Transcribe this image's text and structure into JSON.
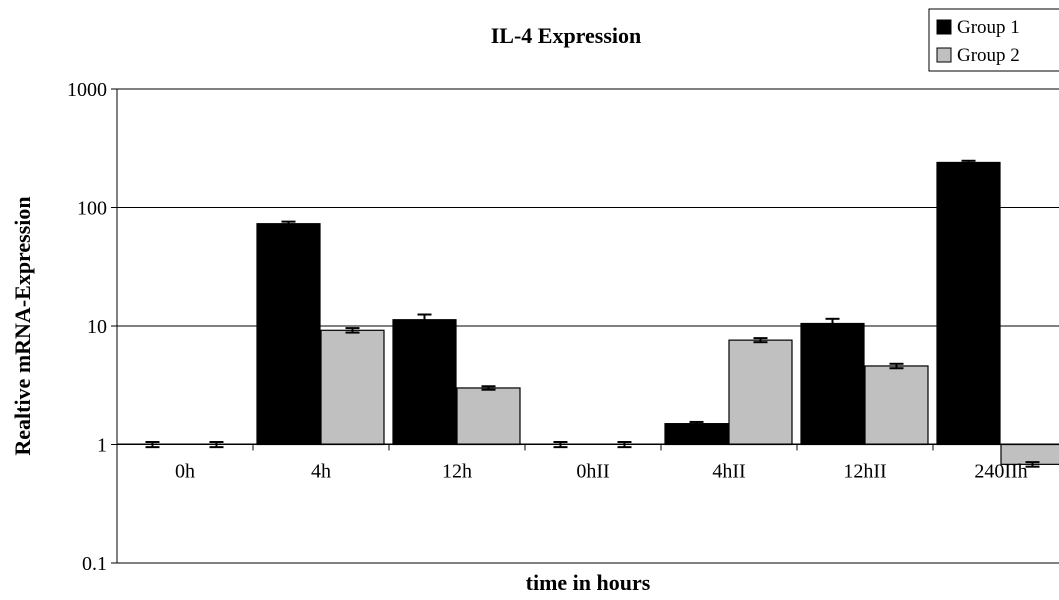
{
  "chart_data": {
    "type": "bar",
    "title": "IL-4 Expression",
    "xlabel": "time in hours",
    "ylabel": "Realtive mRNA-Expression",
    "yscale": "log",
    "ylim": [
      0.1,
      1000
    ],
    "yticks": [
      "0.1",
      "1",
      "10",
      "100",
      "1000"
    ],
    "grid": true,
    "legend_position": "top-right",
    "categories": [
      "0h",
      "4h",
      "12h",
      "0hII",
      "4hII",
      "12hII",
      "240IIh"
    ],
    "series": [
      {
        "name": "Group 1",
        "color": "#000000",
        "values": [
          1,
          73,
          11.3,
          1,
          1.5,
          10.5,
          240
        ],
        "errors": [
          0.05,
          3,
          1.2,
          0.05,
          0.05,
          1,
          8
        ]
      },
      {
        "name": "Group 2",
        "color": "#c0c0c0",
        "values": [
          1,
          9.2,
          3.0,
          1,
          7.6,
          4.6,
          0.68
        ],
        "errors": [
          0.05,
          0.4,
          0.1,
          0.05,
          0.3,
          0.2,
          0.03
        ]
      }
    ]
  }
}
